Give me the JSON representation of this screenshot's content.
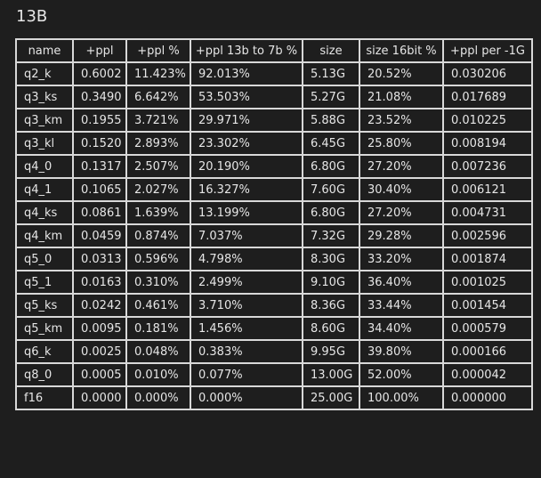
{
  "heading": "13B",
  "table": {
    "columns": [
      "name",
      "+ppl",
      "+ppl %",
      "+ppl 13b to 7b %",
      "size",
      "size 16bit %",
      "+ppl per -1G"
    ],
    "rows": [
      [
        "q2_k",
        "0.6002",
        "11.423%",
        "92.013%",
        "5.13G",
        "20.52%",
        "0.030206"
      ],
      [
        "q3_ks",
        "0.3490",
        "6.642%",
        "53.503%",
        "5.27G",
        "21.08%",
        "0.017689"
      ],
      [
        "q3_km",
        "0.1955",
        "3.721%",
        "29.971%",
        "5.88G",
        "23.52%",
        "0.010225"
      ],
      [
        "q3_kl",
        "0.1520",
        "2.893%",
        "23.302%",
        "6.45G",
        "25.80%",
        "0.008194"
      ],
      [
        "q4_0",
        "0.1317",
        "2.507%",
        "20.190%",
        "6.80G",
        "27.20%",
        "0.007236"
      ],
      [
        "q4_1",
        "0.1065",
        "2.027%",
        "16.327%",
        "7.60G",
        "30.40%",
        "0.006121"
      ],
      [
        "q4_ks",
        "0.0861",
        "1.639%",
        "13.199%",
        "6.80G",
        "27.20%",
        "0.004731"
      ],
      [
        "q4_km",
        "0.0459",
        "0.874%",
        "7.037%",
        "7.32G",
        "29.28%",
        "0.002596"
      ],
      [
        "q5_0",
        "0.0313",
        "0.596%",
        "4.798%",
        "8.30G",
        "33.20%",
        "0.001874"
      ],
      [
        "q5_1",
        "0.0163",
        "0.310%",
        "2.499%",
        "9.10G",
        "36.40%",
        "0.001025"
      ],
      [
        "q5_ks",
        "0.0242",
        "0.461%",
        "3.710%",
        "8.36G",
        "33.44%",
        "0.001454"
      ],
      [
        "q5_km",
        "0.0095",
        "0.181%",
        "1.456%",
        "8.60G",
        "34.40%",
        "0.000579"
      ],
      [
        "q6_k",
        "0.0025",
        "0.048%",
        "0.383%",
        "9.95G",
        "39.80%",
        "0.000166"
      ],
      [
        "q8_0",
        "0.0005",
        "0.010%",
        "0.077%",
        "13.00G",
        "52.00%",
        "0.000042"
      ],
      [
        "f16",
        "0.0000",
        "0.000%",
        "0.000%",
        "25.00G",
        "100.00%",
        "0.000000"
      ]
    ]
  }
}
